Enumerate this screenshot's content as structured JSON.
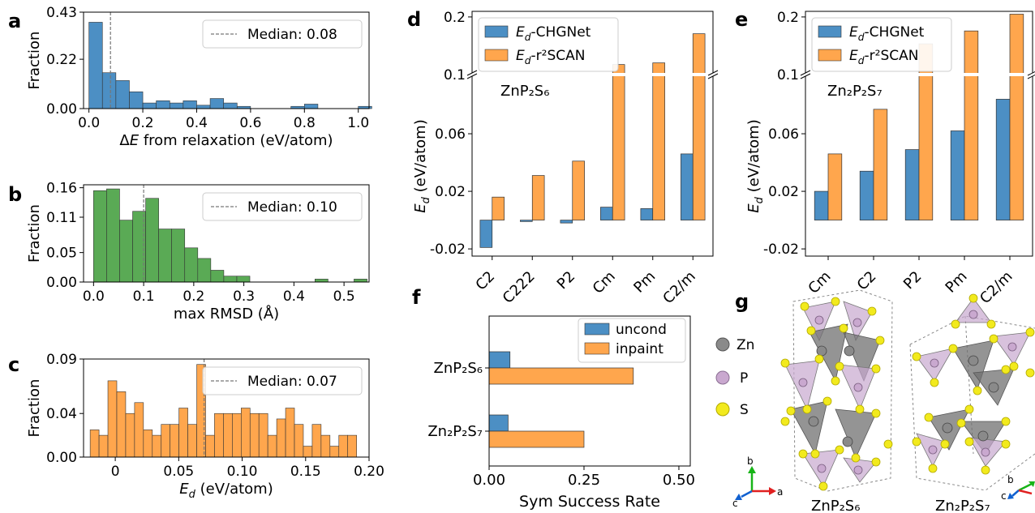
{
  "panel_labels": {
    "a": "a",
    "b": "b",
    "c": "c",
    "d": "d",
    "e": "e",
    "f": "f",
    "g": "g"
  },
  "colors": {
    "blue": "#4c8fc4",
    "orange": "#ffa64d",
    "green": "#5aaa55",
    "zn": "#8a8a8a",
    "p": "#c9a8cf",
    "s": "#f2ea1d"
  },
  "chart_data": [
    {
      "id": "a",
      "type": "bar",
      "xlabel": "ΔE from relaxation (eV/atom)",
      "ylabel": "Fraction",
      "xlim": [
        -0.02,
        1.04
      ],
      "ylim": [
        0,
        0.43
      ],
      "yticks": [
        0.0,
        0.22,
        0.43
      ],
      "ytick_labels": [
        "0.00",
        "0.22",
        "0.43"
      ],
      "xticks": [
        0.0,
        0.2,
        0.4,
        0.6,
        0.8,
        1.0
      ],
      "xtick_labels": [
        "0.0",
        "0.2",
        "0.4",
        "0.6",
        "0.8",
        "1.0"
      ],
      "bin_edges": [
        0.0,
        0.05,
        0.1,
        0.15,
        0.2,
        0.25,
        0.3,
        0.35,
        0.4,
        0.45,
        0.5,
        0.55,
        0.6,
        0.65,
        0.7,
        0.75,
        0.8,
        0.85,
        0.9,
        0.95,
        1.0,
        1.05
      ],
      "values": [
        0.385,
        0.16,
        0.125,
        0.075,
        0.025,
        0.035,
        0.025,
        0.035,
        0.015,
        0.045,
        0.025,
        0.01,
        0.0,
        0.0,
        0.0,
        0.01,
        0.02,
        0.0,
        0.0,
        0.0,
        0.01
      ],
      "median": 0.08,
      "legend_label": "Median:  0.08",
      "legend": "upper-right"
    },
    {
      "id": "b",
      "type": "bar",
      "xlabel": "max RMSD (Å)",
      "ylabel": "Fraction",
      "xlim": [
        -0.02,
        0.55
      ],
      "ylim": [
        0,
        0.165
      ],
      "yticks": [
        0.0,
        0.05,
        0.11,
        0.16
      ],
      "ytick_labels": [
        "0.00",
        "0.05",
        "0.11",
        "0.16"
      ],
      "xticks": [
        0.0,
        0.1,
        0.2,
        0.3,
        0.4,
        0.5
      ],
      "xtick_labels": [
        "0.0",
        "0.1",
        "0.2",
        "0.3",
        "0.4",
        "0.5"
      ],
      "bin_edges": [
        0.0,
        0.026,
        0.052,
        0.078,
        0.104,
        0.13,
        0.156,
        0.182,
        0.208,
        0.234,
        0.26,
        0.286,
        0.312,
        0.338,
        0.364,
        0.39,
        0.416,
        0.442,
        0.468,
        0.494,
        0.52,
        0.546
      ],
      "values": [
        0.155,
        0.158,
        0.105,
        0.12,
        0.142,
        0.09,
        0.09,
        0.058,
        0.04,
        0.02,
        0.01,
        0.01,
        0.0,
        0.0,
        0.0,
        0.0,
        0.0,
        0.005,
        0.0,
        0.0,
        0.005
      ],
      "median": 0.1,
      "legend_label": "Median: 0.10",
      "legend": "upper-right"
    },
    {
      "id": "c",
      "type": "bar",
      "xlabel": "E_d (eV/atom)",
      "ylabel": "Fraction",
      "xlim": [
        -0.025,
        0.2
      ],
      "ylim": [
        0,
        0.09
      ],
      "yticks": [
        0.0,
        0.04,
        0.09
      ],
      "ytick_labels": [
        "0.00",
        "0.04",
        "0.09"
      ],
      "xticks": [
        0.0,
        0.05,
        0.1,
        0.15,
        0.2
      ],
      "xtick_labels": [
        "0",
        "0.05",
        "0.10",
        "0.15",
        "0.20"
      ],
      "bin_edges": [
        -0.0198,
        -0.0128,
        -0.0058,
        0.0012,
        0.0082,
        0.0152,
        0.0222,
        0.0292,
        0.0362,
        0.0432,
        0.0502,
        0.0572,
        0.0642,
        0.0712,
        0.0782,
        0.0852,
        0.0922,
        0.0992,
        0.1062,
        0.1132,
        0.1202,
        0.1272,
        0.1342,
        0.1412,
        0.1482,
        0.1552,
        0.1622,
        0.1692,
        0.1762,
        0.1832,
        0.1902
      ],
      "values": [
        0.025,
        0.02,
        0.07,
        0.06,
        0.04,
        0.05,
        0.025,
        0.02,
        0.03,
        0.03,
        0.045,
        0.03,
        0.085,
        0.02,
        0.04,
        0.04,
        0.04,
        0.045,
        0.04,
        0.04,
        0.02,
        0.035,
        0.045,
        0.03,
        0.01,
        0.03,
        0.02,
        0.01,
        0.02,
        0.02
      ],
      "median": 0.07,
      "legend_label": "Median: 0.07",
      "legend": "upper-right"
    },
    {
      "id": "d",
      "type": "bar",
      "ylabel": "E_d (eV/atom)",
      "categories": [
        "C2",
        "C222",
        "P2",
        "Cm",
        "Pm",
        "C2/m"
      ],
      "series": [
        {
          "name": "E_d-CHGNet",
          "values": [
            -0.019,
            -0.001,
            -0.002,
            0.009,
            0.008,
            0.046
          ]
        },
        {
          "name": "E_d-r²SCAN",
          "values": [
            0.016,
            0.031,
            0.041,
            0.115,
            0.118,
            0.17
          ]
        }
      ],
      "broken_axis": true,
      "lower_ylim": [
        -0.025,
        0.1
      ],
      "upper_ylim": [
        0.1,
        0.21
      ],
      "yticks": [
        -0.02,
        0.02,
        0.06,
        0.1,
        0.2
      ],
      "ytick_labels": [
        "-0.02",
        "0.02",
        "0.06",
        "0.1",
        "0.2"
      ],
      "annotation": "ZnP₂S₆",
      "legend": "upper-left"
    },
    {
      "id": "e",
      "type": "bar",
      "ylabel": "E_d (eV/atom)",
      "categories": [
        "Cm",
        "C2",
        "P2",
        "Pm",
        "C2/m"
      ],
      "series": [
        {
          "name": "E_d-CHGNet",
          "values": [
            0.02,
            0.034,
            0.049,
            0.062,
            0.084
          ]
        },
        {
          "name": "E_d-r²SCAN",
          "values": [
            0.046,
            0.077,
            0.152,
            0.175,
            0.205
          ]
        }
      ],
      "broken_axis": true,
      "lower_ylim": [
        -0.025,
        0.1
      ],
      "upper_ylim": [
        0.1,
        0.21
      ],
      "yticks": [
        -0.02,
        0.02,
        0.06,
        0.1,
        0.2
      ],
      "ytick_labels": [
        "-0.02",
        "0.02",
        "0.06",
        "0.1",
        "0.2"
      ],
      "annotation": "Zn₂P₂S₇",
      "legend": "upper-left"
    },
    {
      "id": "f",
      "type": "bar",
      "orientation": "horizontal",
      "xlabel": "Sym Success Rate",
      "categories": [
        "ZnP₂S₆",
        "Zn₂P₂S₇"
      ],
      "series": [
        {
          "name": "uncond",
          "values": [
            0.055,
            0.05
          ]
        },
        {
          "name": "inpaint",
          "values": [
            0.38,
            0.25
          ]
        }
      ],
      "xlim": [
        0,
        0.53
      ],
      "xticks": [
        0.0,
        0.25,
        0.5
      ],
      "xtick_labels": [
        "0.00",
        "0.25",
        "0.50"
      ],
      "legend": "upper-right"
    }
  ],
  "panel_g": {
    "legend": [
      {
        "label": "Zn",
        "color": "#8a8a8a"
      },
      {
        "label": "P",
        "color": "#c9a8cf"
      },
      {
        "label": "S",
        "color": "#f2ea1d"
      }
    ],
    "axes1": {
      "b": "b",
      "c": "c",
      "a": "a"
    },
    "axes2": {
      "b": "b",
      "c": "c"
    },
    "struct1_label": "ZnP₂S₆",
    "struct2_label": "Zn₂P₂S₇"
  }
}
